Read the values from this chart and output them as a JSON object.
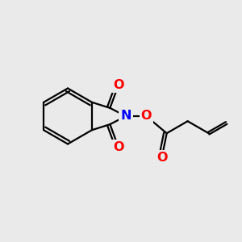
{
  "background_color": "#eaeaea",
  "atom_colors": {
    "C": "#000000",
    "N": "#0000ff",
    "O": "#ff0000"
  },
  "bond_color": "#000000",
  "bond_width": 1.6,
  "font_size_atom": 11.5
}
